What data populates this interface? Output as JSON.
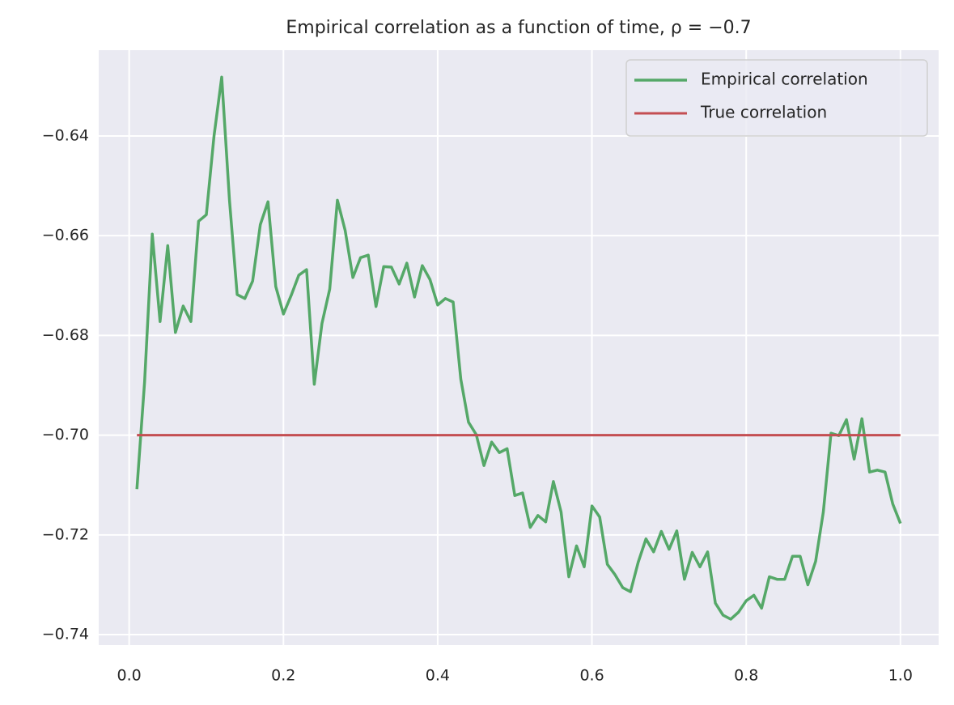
{
  "chart_data": {
    "type": "line",
    "title": "Empirical correlation as a function of time, ρ = −0.7",
    "series": [
      {
        "name": "Empirical correlation",
        "color": "#55a868",
        "x": [
          0.01,
          0.02,
          0.03,
          0.04,
          0.05,
          0.06,
          0.07,
          0.08,
          0.09,
          0.1,
          0.11,
          0.12,
          0.13,
          0.14,
          0.15,
          0.16,
          0.17,
          0.18,
          0.19,
          0.2,
          0.21,
          0.22,
          0.23,
          0.24,
          0.25,
          0.26,
          0.27,
          0.28,
          0.29,
          0.3,
          0.31,
          0.32,
          0.33,
          0.34,
          0.35,
          0.36,
          0.37,
          0.38,
          0.39,
          0.4,
          0.41,
          0.42,
          0.43,
          0.44,
          0.45,
          0.46,
          0.47,
          0.48,
          0.49,
          0.5,
          0.51,
          0.52,
          0.53,
          0.54,
          0.55,
          0.56,
          0.57,
          0.58,
          0.59,
          0.6,
          0.61,
          0.62,
          0.63,
          0.64,
          0.65,
          0.66,
          0.67,
          0.68,
          0.69,
          0.7,
          0.71,
          0.72,
          0.73,
          0.74,
          0.75,
          0.76,
          0.77,
          0.78,
          0.79,
          0.8,
          0.81,
          0.82,
          0.83,
          0.84,
          0.85,
          0.86,
          0.87,
          0.88,
          0.89,
          0.9,
          0.91,
          0.92,
          0.93,
          0.94,
          0.95,
          0.96,
          0.97,
          0.98,
          0.99,
          1.0
        ],
        "values": [
          -0.7108,
          -0.6893,
          -0.6597,
          -0.6772,
          -0.662,
          -0.6794,
          -0.6741,
          -0.6772,
          -0.6571,
          -0.6558,
          -0.64,
          -0.6282,
          -0.6529,
          -0.6718,
          -0.6726,
          -0.6691,
          -0.6578,
          -0.6532,
          -0.6702,
          -0.6757,
          -0.672,
          -0.6679,
          -0.6668,
          -0.6898,
          -0.6776,
          -0.6707,
          -0.6529,
          -0.6589,
          -0.6684,
          -0.6644,
          -0.6639,
          -0.6742,
          -0.6662,
          -0.6663,
          -0.6697,
          -0.6655,
          -0.6723,
          -0.666,
          -0.6688,
          -0.6739,
          -0.6726,
          -0.6733,
          -0.6888,
          -0.6974,
          -0.6999,
          -0.7061,
          -0.7014,
          -0.7035,
          -0.7027,
          -0.7121,
          -0.7116,
          -0.7185,
          -0.7161,
          -0.7174,
          -0.7093,
          -0.7154,
          -0.7284,
          -0.7222,
          -0.7264,
          -0.7142,
          -0.7164,
          -0.7259,
          -0.728,
          -0.7306,
          -0.7314,
          -0.7255,
          -0.7208,
          -0.7234,
          -0.7193,
          -0.7229,
          -0.7192,
          -0.7289,
          -0.7235,
          -0.7264,
          -0.7234,
          -0.7337,
          -0.7361,
          -0.7369,
          -0.7355,
          -0.7332,
          -0.7321,
          -0.7347,
          -0.7284,
          -0.7289,
          -0.7289,
          -0.7243,
          -0.7243,
          -0.73,
          -0.7253,
          -0.7154,
          -0.6996,
          -0.7001,
          -0.6969,
          -0.7048,
          -0.6967,
          -0.7074,
          -0.707,
          -0.7074,
          -0.7138,
          -0.7177
        ]
      },
      {
        "name": "True correlation",
        "color": "#c44e52",
        "x": [
          0.01,
          1.0
        ],
        "values": [
          -0.7,
          -0.7
        ]
      }
    ],
    "xlim": [
      -0.0395,
      1.0495
    ],
    "ylim": [
      -0.7421,
      -0.6228
    ],
    "xticks": [
      {
        "value": 0,
        "label": "0.0"
      },
      0.2,
      0.4,
      0.6,
      0.8,
      {
        "value": 1.0,
        "label": "1.0"
      }
    ],
    "yticks": [
      {
        "value": -0.74,
        "label": "−0.74"
      },
      {
        "value": -0.72,
        "label": "−0.72"
      },
      {
        "value": -0.7,
        "label": "−0.70"
      },
      {
        "value": -0.68,
        "label": "−0.68"
      },
      {
        "value": -0.66,
        "label": "−0.66"
      },
      {
        "value": -0.64,
        "label": "−0.64"
      }
    ],
    "grid": true,
    "legend": "upper right"
  }
}
